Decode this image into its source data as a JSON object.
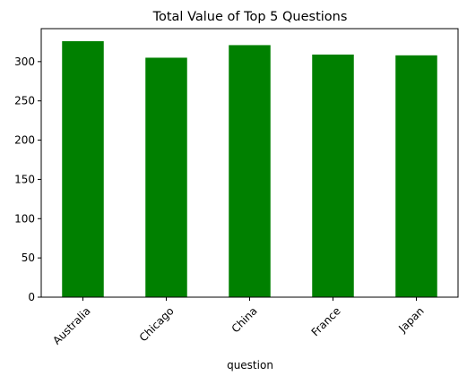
{
  "chart_data": {
    "type": "bar",
    "title": "Total Value of Top 5 Questions",
    "xlabel": "question",
    "ylabel": "",
    "categories": [
      "Australia",
      "Chicago",
      "China",
      "France",
      "Japan"
    ],
    "values": [
      326,
      305,
      321,
      309,
      308
    ],
    "ylim": [
      0,
      342
    ],
    "yticks": [
      0,
      50,
      100,
      150,
      200,
      250,
      300
    ],
    "ytick_labels": [
      "0",
      "50",
      "100",
      "150",
      "200",
      "250",
      "300"
    ],
    "xtick_rotation_deg": 45,
    "grid": false,
    "legend": "none",
    "bar_color": "#008000"
  }
}
